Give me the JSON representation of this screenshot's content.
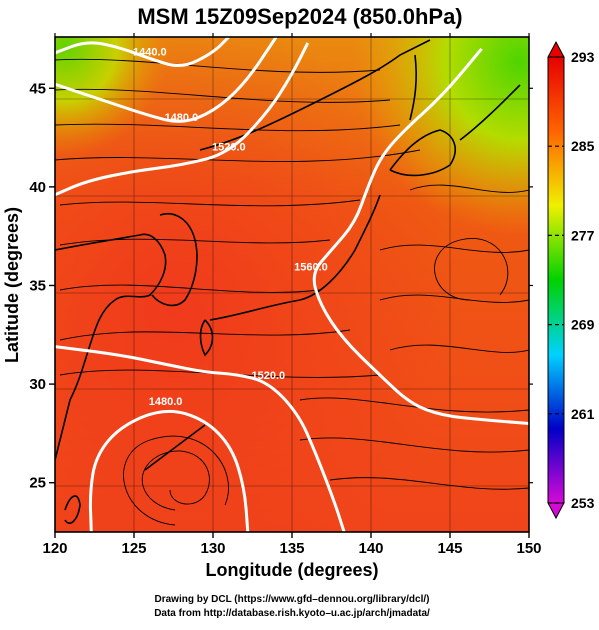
{
  "chart_data": {
    "type": "heatmap",
    "title": "MSM 15Z09Sep2024 (850.0hPa)",
    "xlabel": "Longitude (degrees)",
    "ylabel": "Latitude  (degrees)",
    "xlim": [
      120,
      150
    ],
    "ylim": [
      22.5,
      47.6
    ],
    "x_ticks": [
      "120",
      "125",
      "130",
      "135",
      "140",
      "145",
      "150"
    ],
    "y_ticks": [
      "25",
      "30",
      "35",
      "40",
      "45"
    ],
    "colorbar": {
      "min": 253,
      "max": 293,
      "ticks": [
        "293",
        "285",
        "277",
        "269",
        "261",
        "253"
      ],
      "colors": [
        "#d60ad6",
        "#0000c8",
        "#00d2ff",
        "#00d200",
        "#f0f000",
        "#ff6400",
        "#e60000"
      ]
    },
    "contours": [
      {
        "label": "1440.0",
        "points": [
          [
            120,
            46.8
          ],
          [
            122,
            47.4
          ],
          [
            124,
            47.1
          ],
          [
            126,
            46.5
          ],
          [
            128,
            46.0
          ],
          [
            130,
            46.8
          ],
          [
            131,
            47.6
          ]
        ]
      },
      {
        "label": "1480.0",
        "points": [
          [
            120,
            45.2
          ],
          [
            123,
            44.4
          ],
          [
            126,
            43.6
          ],
          [
            128,
            43.2
          ],
          [
            130,
            43.8
          ],
          [
            132,
            45.2
          ],
          [
            134,
            47.6
          ]
        ]
      },
      {
        "label": "1520.0",
        "points": [
          [
            120,
            39.6
          ],
          [
            122,
            40.3
          ],
          [
            125,
            40.8
          ],
          [
            128,
            41.1
          ],
          [
            131,
            41.7
          ],
          [
            133.5,
            43.8
          ],
          [
            135,
            45.7
          ],
          [
            136,
            47.3
          ]
        ]
      },
      {
        "label": "1560.0",
        "points": [
          [
            147,
            47.0
          ],
          [
            144.5,
            44.6
          ],
          [
            142,
            42.8
          ],
          [
            140.6,
            41.5
          ],
          [
            139.8,
            40.0
          ],
          [
            139,
            38.2
          ],
          [
            137.5,
            36.8
          ],
          [
            136.2,
            35.6
          ],
          [
            136.8,
            34.0
          ],
          [
            138.2,
            32.3
          ],
          [
            140.5,
            30.5
          ],
          [
            142.5,
            29.0
          ],
          [
            144.5,
            28.4
          ],
          [
            147,
            28.2
          ],
          [
            150,
            28.0
          ]
        ]
      },
      {
        "label": "1520.0",
        "points": [
          [
            120,
            31.9
          ],
          [
            124,
            31.5
          ],
          [
            127,
            31.0
          ],
          [
            129.5,
            30.6
          ],
          [
            131.5,
            30.5
          ],
          [
            133.5,
            30.1
          ],
          [
            135.4,
            28.5
          ],
          [
            136.5,
            26.5
          ],
          [
            137.7,
            24.0
          ],
          [
            138.3,
            22.5
          ]
        ]
      },
      {
        "label": "1480.0",
        "points": [
          [
            122.3,
            22.5
          ],
          [
            122.2,
            24.5
          ],
          [
            122.6,
            26.4
          ],
          [
            124.2,
            27.9
          ],
          [
            127,
            28.8
          ],
          [
            129.5,
            28.2
          ],
          [
            131.2,
            26.8
          ],
          [
            132,
            24.7
          ],
          [
            132.2,
            22.5
          ]
        ]
      }
    ],
    "series": []
  }
}
